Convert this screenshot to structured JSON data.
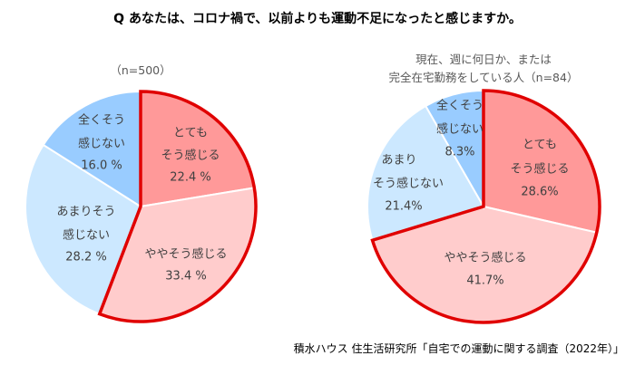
{
  "title": "Q あなたは、コロナ禍で、以前よりも運動不足になったと感じますか。",
  "source": "積水ハウス 住生活研究所「自宅での運動に関する調査（2022年）」",
  "colors": {
    "very": "#FF9999",
    "somewhat": "#FFCCCC",
    "notmuch": "#CCE8FF",
    "notatall": "#99CCFF",
    "outline": "#E00000"
  },
  "chart_data": [
    {
      "type": "pie",
      "subtitle": [
        "（n=500）"
      ],
      "slices": [
        {
          "label": [
            "とても",
            "そう感じる"
          ],
          "value": 22.4,
          "value_text": "22.4 %",
          "color_key": "very"
        },
        {
          "label": [
            "ややそう感じる"
          ],
          "value": 33.4,
          "value_text": "33.4 %",
          "color_key": "somewhat"
        },
        {
          "label": [
            "あまりそう",
            "感じない"
          ],
          "value": 28.2,
          "value_text": "28.2 %",
          "color_key": "notmuch"
        },
        {
          "label": [
            "全くそう",
            "感じない"
          ],
          "value": 16.0,
          "value_text": "16.0 %",
          "color_key": "notatall"
        }
      ],
      "start": "12 o'clock, clockwise",
      "highlight": "first two slices outlined in red"
    },
    {
      "type": "pie",
      "subtitle": [
        "現在、週に何日か、または",
        "完全在宅勤務をしている人（n=84）"
      ],
      "slices": [
        {
          "label": [
            "とても",
            "そう感じる"
          ],
          "value": 28.6,
          "value_text": "28.6%",
          "color_key": "very"
        },
        {
          "label": [
            "ややそう感じる"
          ],
          "value": 41.7,
          "value_text": "41.7%",
          "color_key": "somewhat"
        },
        {
          "label": [
            "あまり",
            "そう感じない"
          ],
          "value": 21.4,
          "value_text": "21.4%",
          "color_key": "notmuch"
        },
        {
          "label": [
            "全くそう",
            "感じない"
          ],
          "value": 8.3,
          "value_text": "8.3%",
          "color_key": "notatall"
        }
      ],
      "start": "12 o'clock, clockwise",
      "highlight": "first two slices outlined in red"
    }
  ]
}
